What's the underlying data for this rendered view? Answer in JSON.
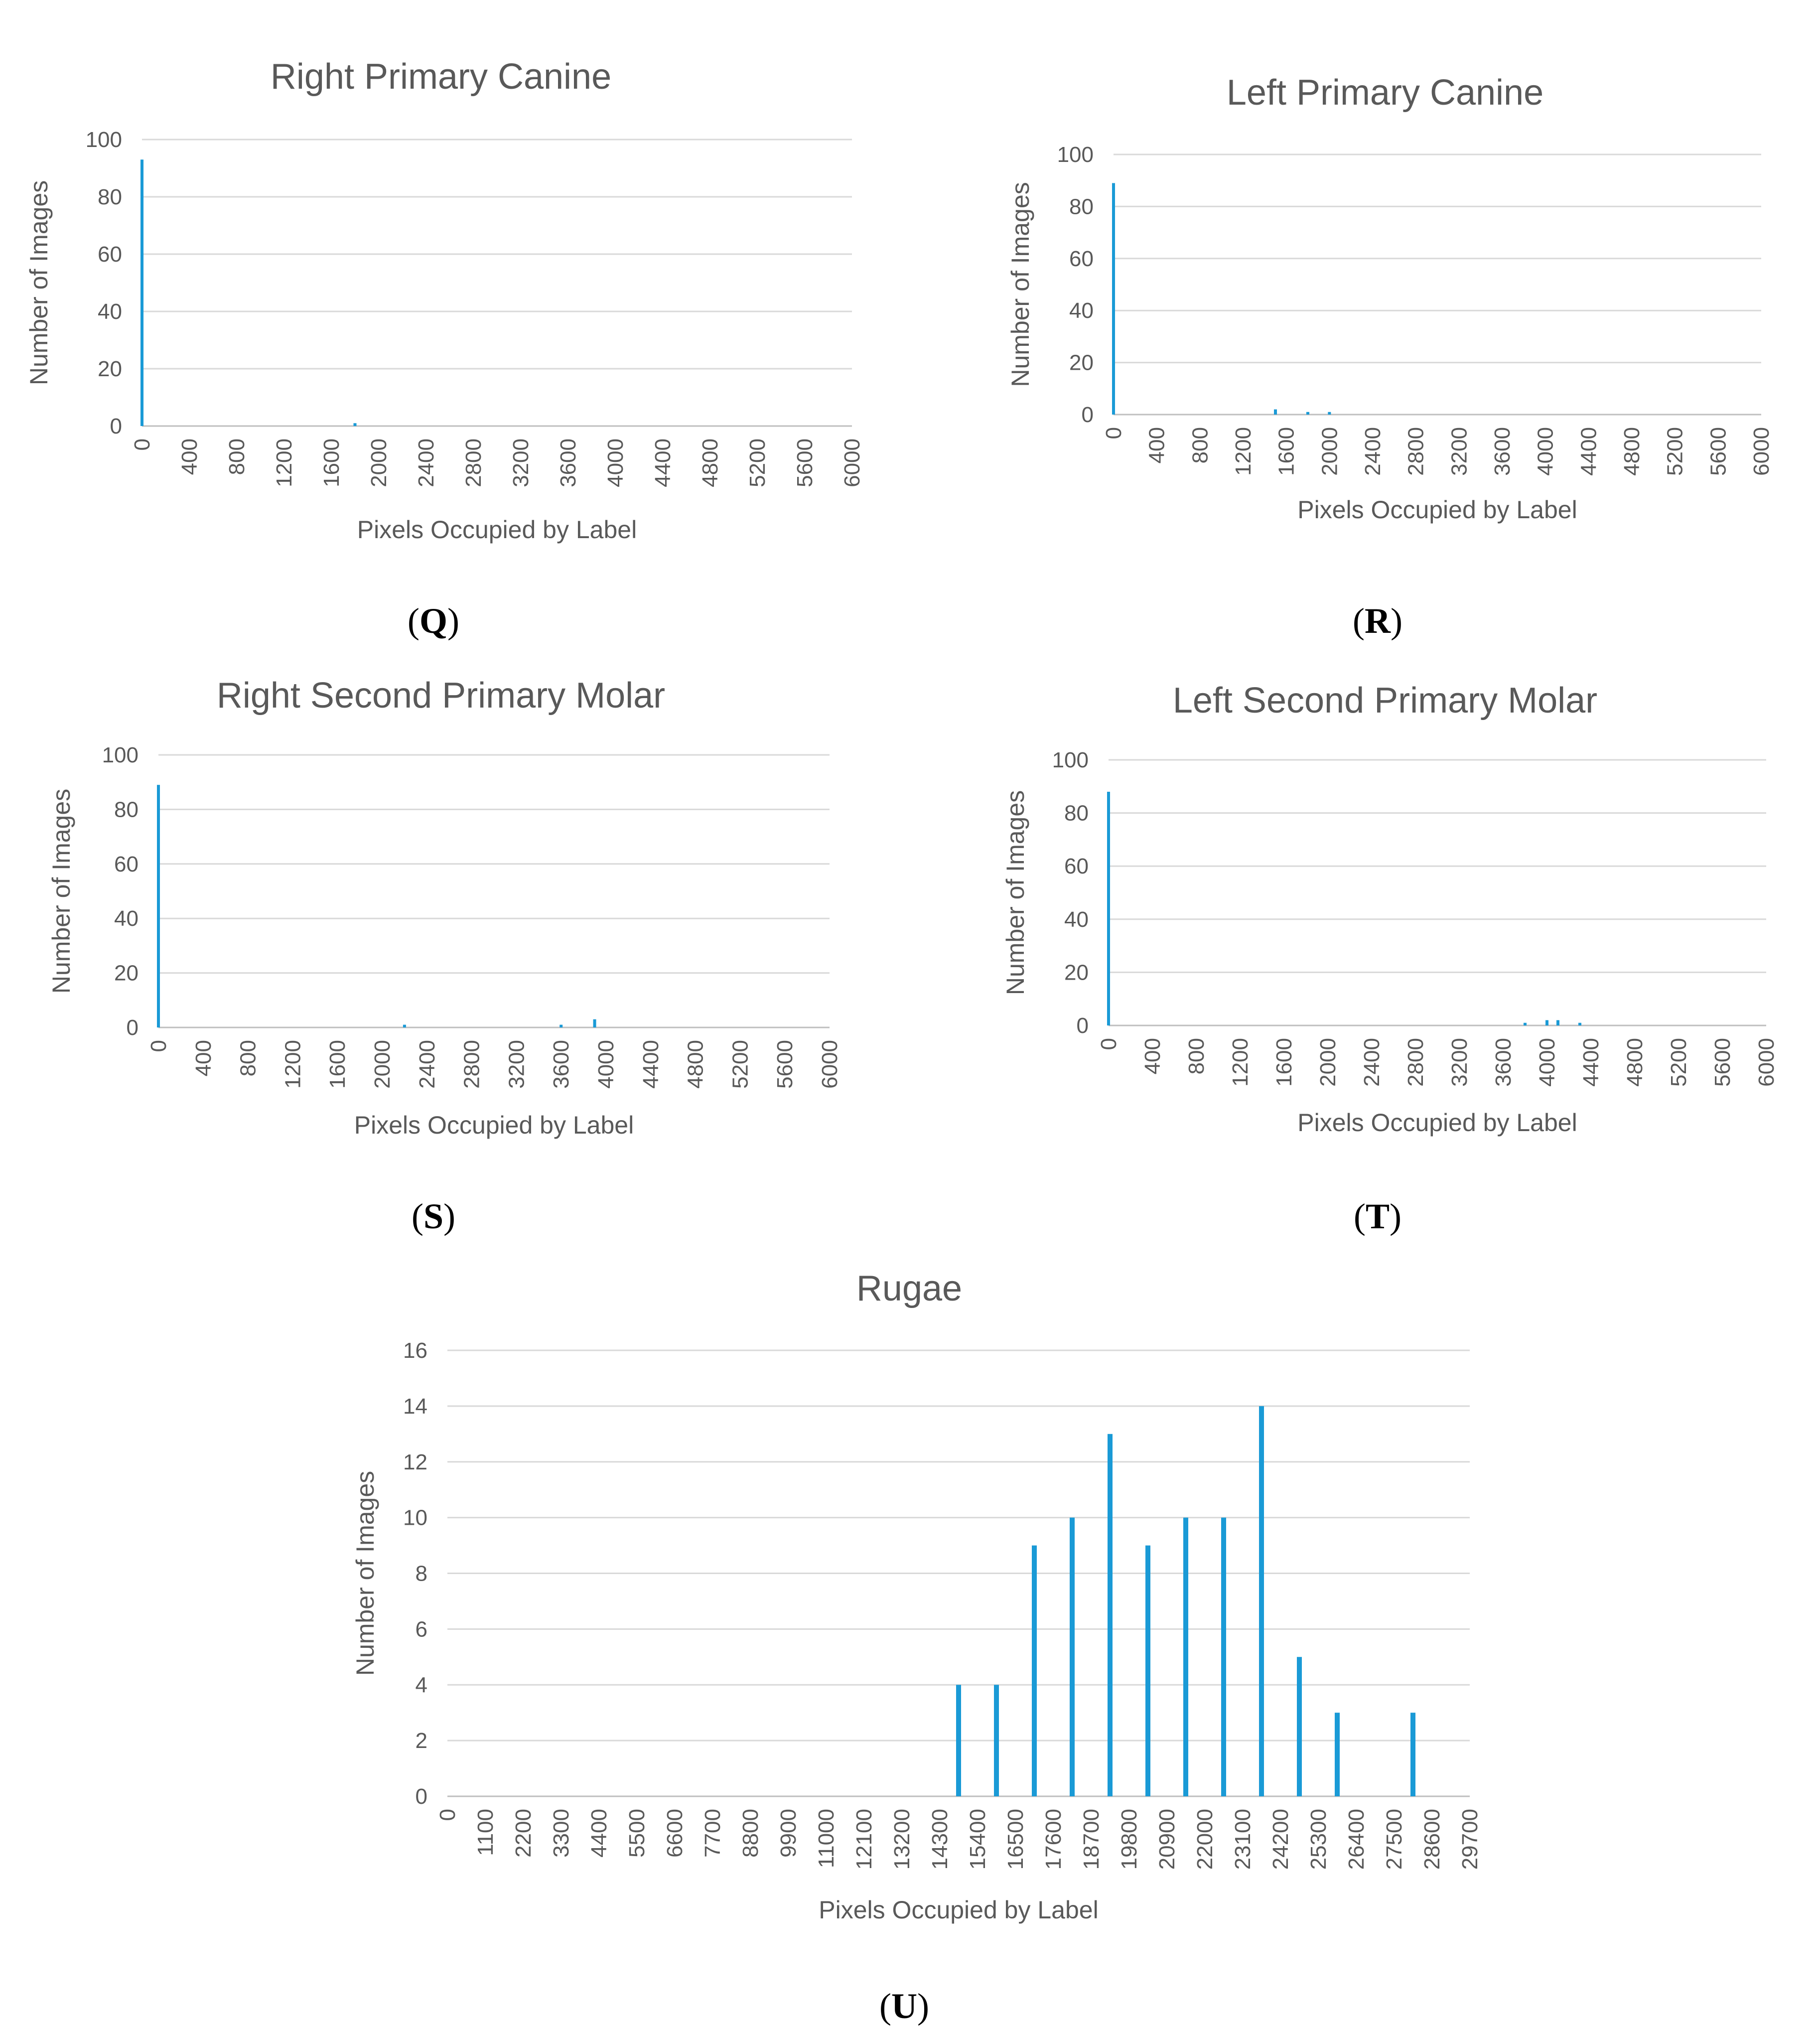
{
  "figure": {
    "background": "#ffffff",
    "bar_color": "#1a9ad6"
  },
  "chart_data": [
    {
      "panel": "Q",
      "type": "bar",
      "title": "Right Primary Canine",
      "xlabel": "Pixels Occupied by Label",
      "ylabel": "Number of Images",
      "xlim": [
        0,
        6000
      ],
      "xticks": [
        0,
        400,
        800,
        1200,
        1600,
        2000,
        2400,
        2800,
        3200,
        3600,
        4000,
        4400,
        4800,
        5200,
        5600,
        6000
      ],
      "ylim": [
        0,
        100
      ],
      "yticks": [
        0,
        20,
        40,
        60,
        80,
        100
      ],
      "grid": true,
      "bars": [
        {
          "x": 0,
          "y": 93
        },
        {
          "x": 1800,
          "y": 1
        }
      ]
    },
    {
      "panel": "R",
      "type": "bar",
      "title": "Left Primary Canine",
      "xlabel": "Pixels Occupied by Label",
      "ylabel": "Number of Images",
      "xlim": [
        0,
        6000
      ],
      "xticks": [
        0,
        400,
        800,
        1200,
        1600,
        2000,
        2400,
        2800,
        3200,
        3600,
        4000,
        4400,
        4800,
        5200,
        5600,
        6000
      ],
      "ylim": [
        0,
        100
      ],
      "yticks": [
        0,
        20,
        40,
        60,
        80,
        100
      ],
      "grid": true,
      "bars": [
        {
          "x": 0,
          "y": 89
        },
        {
          "x": 1500,
          "y": 2
        },
        {
          "x": 1800,
          "y": 1
        },
        {
          "x": 2000,
          "y": 1
        }
      ]
    },
    {
      "panel": "S",
      "type": "bar",
      "title": "Right Second Primary Molar",
      "xlabel": "Pixels Occupied by Label",
      "ylabel": "Number of Images",
      "xlim": [
        0,
        6000
      ],
      "xticks": [
        0,
        400,
        800,
        1200,
        1600,
        2000,
        2400,
        2800,
        3200,
        3600,
        4000,
        4400,
        4800,
        5200,
        5600,
        6000
      ],
      "ylim": [
        0,
        100
      ],
      "yticks": [
        0,
        20,
        40,
        60,
        80,
        100
      ],
      "grid": true,
      "bars": [
        {
          "x": 0,
          "y": 89
        },
        {
          "x": 2200,
          "y": 1
        },
        {
          "x": 3600,
          "y": 1
        },
        {
          "x": 3900,
          "y": 3
        }
      ]
    },
    {
      "panel": "T",
      "type": "bar",
      "title": "Left Second Primary Molar",
      "xlabel": "Pixels Occupied by Label",
      "ylabel": "Number of Images",
      "xlim": [
        0,
        6000
      ],
      "xticks": [
        0,
        400,
        800,
        1200,
        1600,
        2000,
        2400,
        2800,
        3200,
        3600,
        4000,
        4400,
        4800,
        5200,
        5600,
        6000
      ],
      "ylim": [
        0,
        100
      ],
      "yticks": [
        0,
        20,
        40,
        60,
        80,
        100
      ],
      "grid": true,
      "bars": [
        {
          "x": 0,
          "y": 88
        },
        {
          "x": 3800,
          "y": 1
        },
        {
          "x": 4000,
          "y": 2
        },
        {
          "x": 4100,
          "y": 2
        },
        {
          "x": 4300,
          "y": 1
        }
      ]
    },
    {
      "panel": "U",
      "type": "bar",
      "title": "Rugae",
      "xlabel": "Pixels Occupied by Label",
      "ylabel": "Number of Images",
      "xlim": [
        0,
        29700
      ],
      "xticks": [
        0,
        1100,
        2200,
        3300,
        4400,
        5500,
        6600,
        7700,
        8800,
        9900,
        11000,
        12100,
        13200,
        14300,
        15400,
        16500,
        17600,
        18700,
        19800,
        20900,
        22000,
        23100,
        24200,
        25300,
        26400,
        27500,
        28600,
        29700
      ],
      "ylim": [
        0,
        16
      ],
      "yticks": [
        0,
        2,
        4,
        6,
        8,
        10,
        12,
        14,
        16
      ],
      "grid": true,
      "bars": [
        {
          "x": 14850,
          "y": 4
        },
        {
          "x": 15950,
          "y": 4
        },
        {
          "x": 17050,
          "y": 9
        },
        {
          "x": 18150,
          "y": 10
        },
        {
          "x": 19250,
          "y": 13
        },
        {
          "x": 20350,
          "y": 9
        },
        {
          "x": 21450,
          "y": 10
        },
        {
          "x": 22550,
          "y": 10
        },
        {
          "x": 23650,
          "y": 14
        },
        {
          "x": 24750,
          "y": 5
        },
        {
          "x": 25850,
          "y": 3
        },
        {
          "x": 28050,
          "y": 3
        }
      ]
    }
  ]
}
